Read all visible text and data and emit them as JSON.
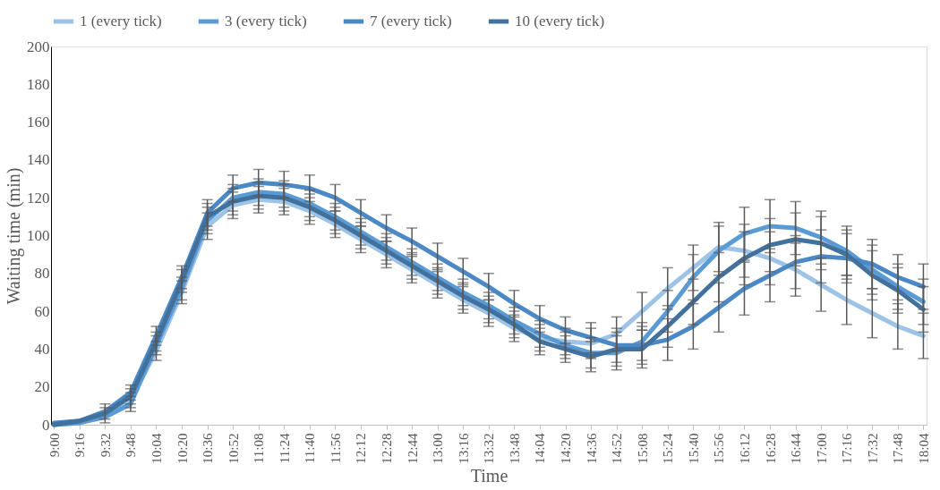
{
  "chart_data": {
    "type": "line",
    "xlabel": "Time",
    "ylabel": "Waiting time (min)",
    "x": [
      9,
      9.2667,
      9.5333,
      9.8,
      10.0667,
      10.3333,
      10.6,
      10.8667,
      11.1333,
      11.4,
      11.6667,
      11.9333,
      12.2,
      12.4667,
      12.7333,
      13,
      13.2667,
      13.5333,
      13.8,
      14.0667,
      14.3333,
      14.6,
      14.8667,
      15.1333,
      15.4,
      15.6667,
      15.9333,
      16.2,
      16.4667,
      16.7333,
      17,
      17.2667,
      17.5333,
      17.8,
      18.0667
    ],
    "xlim": [
      8.97,
      18.1
    ],
    "xticks": [
      {
        "value": 9,
        "label": "9:00"
      },
      {
        "value": 9.2667,
        "label": "9:16"
      },
      {
        "value": 9.5333,
        "label": "9:32"
      },
      {
        "value": 9.8,
        "label": "9:48"
      },
      {
        "value": 10.0667,
        "label": "10:04"
      },
      {
        "value": 10.3333,
        "label": "10:20"
      },
      {
        "value": 10.6,
        "label": "10:36"
      },
      {
        "value": 10.8667,
        "label": "10:52"
      },
      {
        "value": 11.1333,
        "label": "11:08"
      },
      {
        "value": 11.4,
        "label": "11:24"
      },
      {
        "value": 11.6667,
        "label": "11:40"
      },
      {
        "value": 11.9333,
        "label": "11:56"
      },
      {
        "value": 12.2,
        "label": "12:12"
      },
      {
        "value": 12.4667,
        "label": "12:28"
      },
      {
        "value": 12.7333,
        "label": "12:44"
      },
      {
        "value": 13,
        "label": "13:00"
      },
      {
        "value": 13.2667,
        "label": "13:16"
      },
      {
        "value": 13.5333,
        "label": "13:32"
      },
      {
        "value": 13.8,
        "label": "13:48"
      },
      {
        "value": 14.0667,
        "label": "14:04"
      },
      {
        "value": 14.3333,
        "label": "14:20"
      },
      {
        "value": 14.6,
        "label": "14:36"
      },
      {
        "value": 14.8667,
        "label": "14:52"
      },
      {
        "value": 15.1333,
        "label": "15:08"
      },
      {
        "value": 15.4,
        "label": "15:24"
      },
      {
        "value": 15.6667,
        "label": "15:40"
      },
      {
        "value": 15.9333,
        "label": "15:56"
      },
      {
        "value": 16.2,
        "label": "16:12"
      },
      {
        "value": 16.4667,
        "label": "16:28"
      },
      {
        "value": 16.7333,
        "label": "16:44"
      },
      {
        "value": 17,
        "label": "17:00"
      },
      {
        "value": 17.2667,
        "label": "17:16"
      },
      {
        "value": 17.5333,
        "label": "17:32"
      },
      {
        "value": 17.8,
        "label": "17:48"
      },
      {
        "value": 18.0667,
        "label": "18:04"
      }
    ],
    "ylim": [
      0,
      200
    ],
    "yticks": [
      0,
      20,
      40,
      60,
      80,
      100,
      120,
      140,
      160,
      180,
      200
    ],
    "grid": false,
    "legend": "top",
    "series": [
      {
        "name": "1 (every tick)",
        "color": "#9dc3e6",
        "values": [
          0,
          1,
          5,
          13,
          39,
          70,
          105,
          116,
          119,
          118,
          113,
          106,
          98,
          90,
          82,
          74,
          66,
          59,
          51,
          46,
          44,
          43,
          48,
          60,
          72,
          83,
          94,
          92,
          88,
          82,
          74,
          66,
          59,
          52,
          47
        ],
        "errors": [
          null,
          null,
          4,
          4,
          5,
          6,
          7,
          7,
          7,
          7,
          7,
          7,
          7,
          7,
          7,
          7,
          7,
          7,
          7,
          7,
          7,
          8,
          9,
          10,
          11,
          12,
          13,
          14,
          14,
          14,
          14,
          13,
          13,
          12,
          12
        ]
      },
      {
        "name": "3 (every tick)",
        "color": "#5b9bd5",
        "values": [
          0,
          1,
          4,
          11,
          42,
          72,
          108,
          120,
          123,
          122,
          117,
          110,
          102,
          94,
          86,
          78,
          70,
          63,
          55,
          48,
          42,
          38,
          38,
          44,
          60,
          78,
          92,
          101,
          105,
          104,
          99,
          92,
          82,
          73,
          65
        ],
        "errors": [
          null,
          null,
          null,
          4,
          5,
          6,
          7,
          7,
          7,
          7,
          7,
          7,
          7,
          7,
          7,
          7,
          7,
          7,
          7,
          7,
          7,
          8,
          9,
          10,
          11,
          12,
          13,
          14,
          14,
          14,
          14,
          13,
          13,
          12,
          12
        ]
      },
      {
        "name": "7 (every tick)",
        "color": "#4a88c6",
        "values": [
          1,
          2,
          7,
          17,
          47,
          78,
          112,
          125,
          128,
          127,
          125,
          120,
          112,
          104,
          97,
          89,
          81,
          73,
          64,
          56,
          50,
          46,
          42,
          42,
          45,
          52,
          62,
          72,
          79,
          86,
          89,
          88,
          85,
          78,
          73
        ],
        "errors": [
          null,
          null,
          4,
          4,
          5,
          6,
          7,
          7,
          7,
          7,
          7,
          7,
          7,
          7,
          7,
          7,
          7,
          7,
          7,
          7,
          7,
          8,
          9,
          10,
          11,
          12,
          13,
          14,
          14,
          14,
          14,
          13,
          13,
          12,
          12
        ]
      },
      {
        "name": "10 (every tick)",
        "color": "#41719c",
        "values": [
          0,
          2,
          6,
          15,
          44,
          76,
          110,
          118,
          121,
          120,
          115,
          108,
          100,
          92,
          84,
          76,
          68,
          61,
          53,
          44,
          40,
          36,
          40,
          40,
          52,
          65,
          78,
          88,
          95,
          98,
          96,
          90,
          79,
          71,
          61
        ],
        "errors": [
          null,
          null,
          null,
          4,
          5,
          6,
          7,
          7,
          7,
          7,
          7,
          7,
          7,
          7,
          7,
          7,
          7,
          7,
          7,
          7,
          7,
          8,
          9,
          10,
          11,
          12,
          13,
          14,
          14,
          14,
          14,
          13,
          13,
          12,
          12
        ]
      }
    ]
  }
}
